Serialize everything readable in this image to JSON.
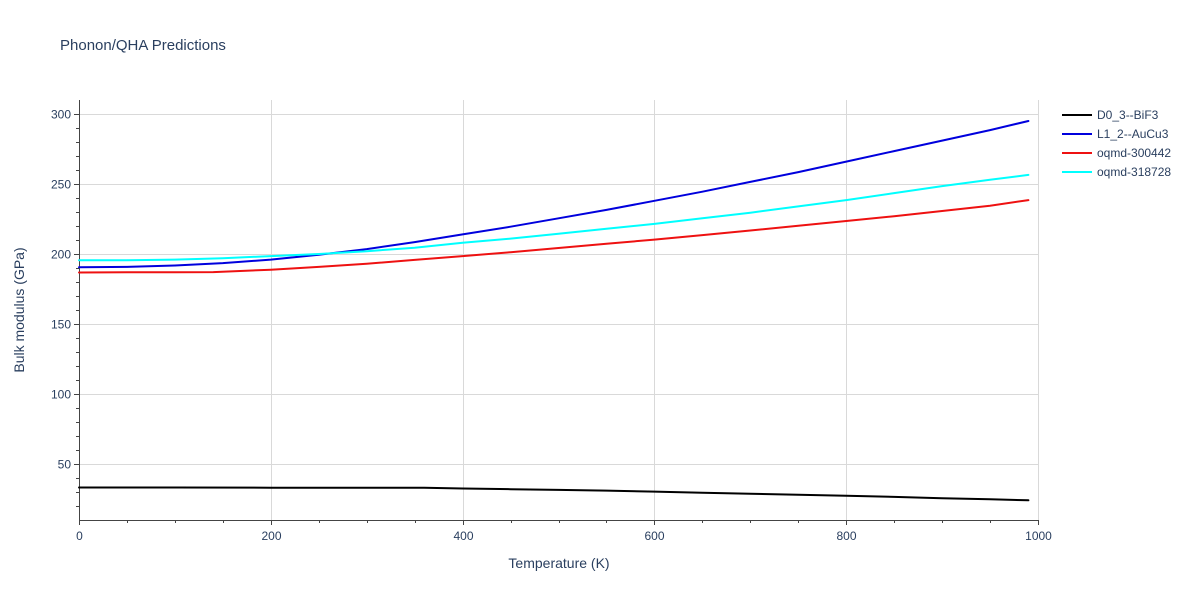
{
  "chart_data": {
    "type": "line",
    "title": "Phonon/QHA Predictions",
    "xlabel": "Temperature (K)",
    "ylabel": "Bulk modulus (GPa)",
    "xlim": [
      0,
      1000
    ],
    "ylim": [
      10,
      310
    ],
    "xticks": [
      0,
      200,
      400,
      600,
      800,
      1000
    ],
    "yticks": [
      50,
      100,
      150,
      200,
      250,
      300
    ],
    "grid": true,
    "legend_position": "top-right",
    "series": [
      {
        "name": "D0_3--BiF3",
        "color": "#000000",
        "x": [
          0,
          100,
          200,
          300,
          360,
          400,
          450,
          500,
          550,
          600,
          650,
          700,
          750,
          800,
          850,
          900,
          950,
          990
        ],
        "y": [
          33.2,
          33.2,
          33.1,
          33.0,
          33.0,
          32.5,
          32.0,
          31.5,
          31.0,
          30.3,
          29.5,
          28.8,
          28.1,
          27.3,
          26.5,
          25.6,
          24.8,
          24.1
        ]
      },
      {
        "name": "L1_2--AuCu3",
        "color": "#0000dd",
        "x": [
          0,
          50,
          100,
          150,
          200,
          250,
          300,
          350,
          400,
          450,
          500,
          550,
          600,
          650,
          700,
          750,
          800,
          850,
          900,
          950,
          990
        ],
        "y": [
          190.5,
          190.8,
          191.8,
          193.5,
          196.0,
          199.5,
          203.5,
          208.5,
          214.0,
          219.5,
          225.5,
          231.5,
          238.0,
          244.5,
          251.5,
          258.5,
          266.0,
          273.5,
          281.0,
          288.5,
          295.0
        ]
      },
      {
        "name": "oqmd-300442",
        "color": "#ee1111",
        "x": [
          0,
          50,
          100,
          140,
          200,
          250,
          300,
          350,
          400,
          450,
          500,
          550,
          600,
          650,
          700,
          750,
          800,
          850,
          900,
          950,
          990
        ],
        "y": [
          186.8,
          186.9,
          187.0,
          187.1,
          188.8,
          190.8,
          193.0,
          195.8,
          198.5,
          201.3,
          204.3,
          207.3,
          210.3,
          213.5,
          216.8,
          220.2,
          223.6,
          227.0,
          230.7,
          234.5,
          238.5
        ]
      },
      {
        "name": "oqmd-318728",
        "color": "#00ffff",
        "x": [
          0,
          50,
          100,
          150,
          200,
          250,
          300,
          350,
          400,
          450,
          500,
          550,
          600,
          650,
          700,
          750,
          800,
          850,
          900,
          950,
          990
        ],
        "y": [
          195.5,
          195.6,
          196.0,
          197.0,
          198.5,
          200.0,
          202.0,
          204.5,
          208.0,
          211.0,
          214.5,
          218.0,
          221.5,
          225.5,
          229.5,
          234.0,
          238.5,
          243.5,
          248.5,
          253.0,
          256.5
        ]
      }
    ]
  }
}
